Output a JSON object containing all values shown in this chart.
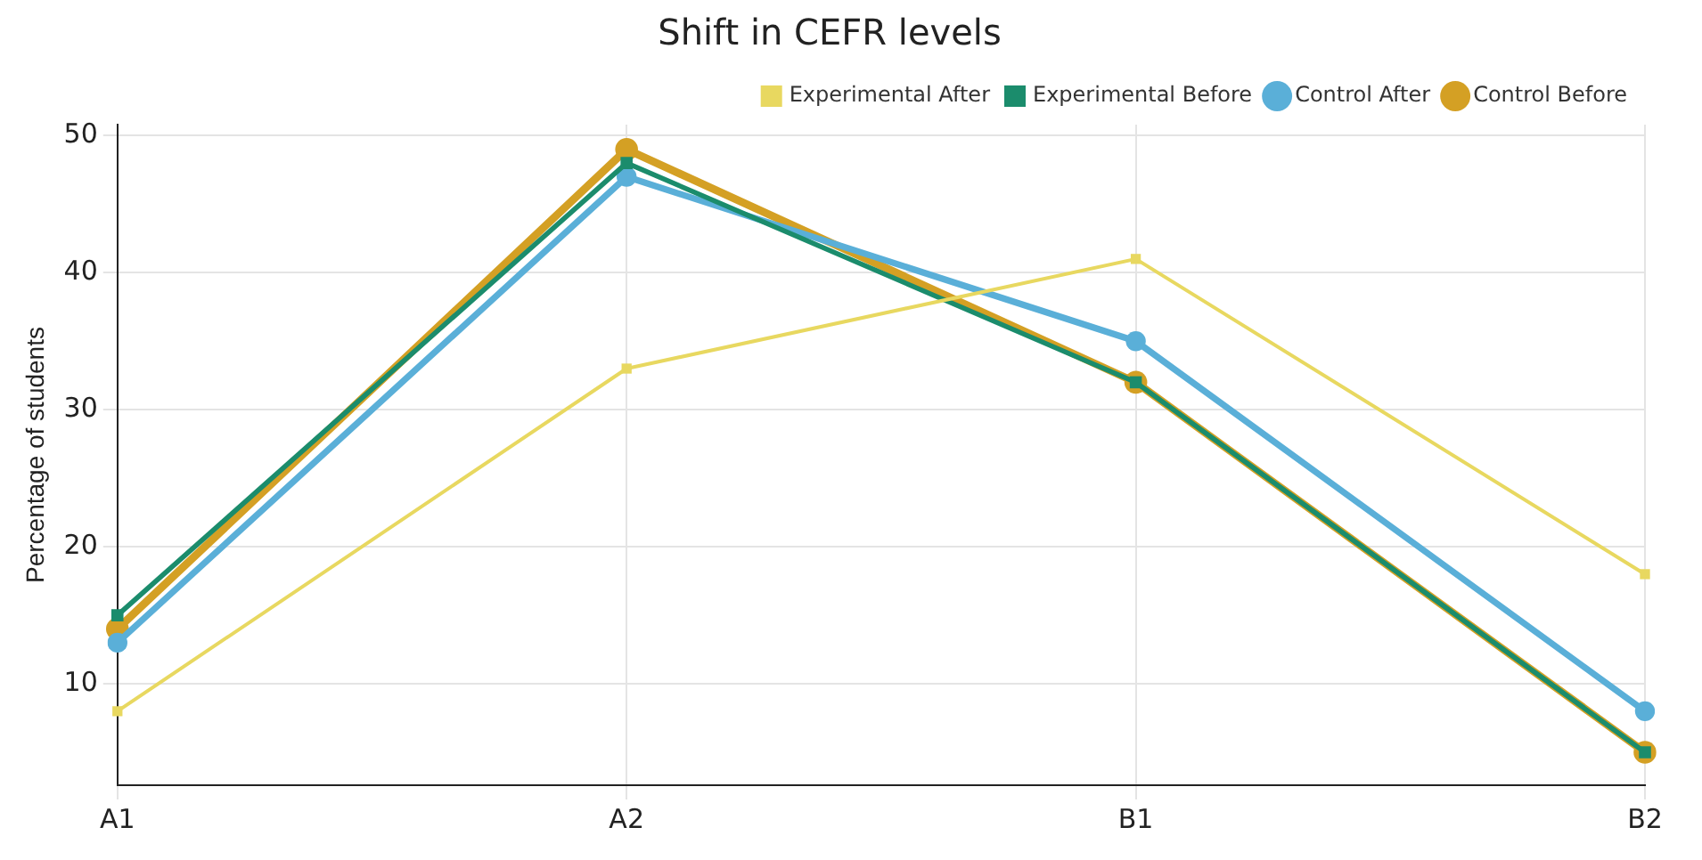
{
  "chart_data": {
    "type": "line",
    "title": "Shift in CEFR levels",
    "ylabel": "Percentage of students",
    "categories": [
      "A1",
      "A2",
      "B1",
      "B2"
    ],
    "series": [
      {
        "name": "Control Before",
        "color": "#d4a024",
        "values": [
          14,
          49,
          32,
          5
        ],
        "marker": "circle"
      },
      {
        "name": "Control After",
        "color": "#5aafd8",
        "values": [
          13,
          47,
          35,
          8
        ],
        "marker": "circle"
      },
      {
        "name": "Experimental Before",
        "color": "#1b8c6c",
        "values": [
          15,
          48,
          32,
          5
        ],
        "marker": "square"
      },
      {
        "name": "Experimental After",
        "color": "#e8d860",
        "values": [
          8,
          33,
          41,
          18
        ],
        "marker": "square"
      }
    ],
    "ylim": [
      2.6,
      50.8
    ],
    "yticks": [
      10,
      20,
      30,
      40,
      50
    ],
    "grid": true,
    "legend": "top right"
  }
}
